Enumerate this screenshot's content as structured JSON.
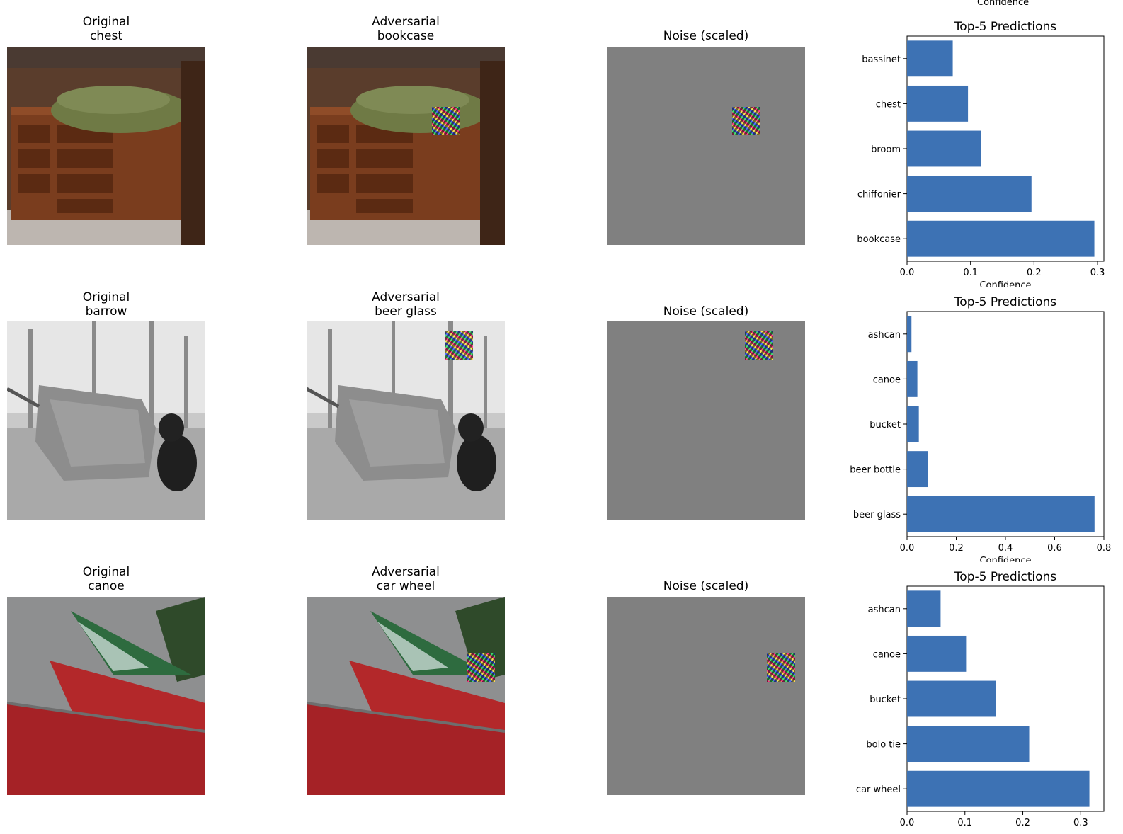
{
  "rows": [
    {
      "original_title": "Original\nchest",
      "adversarial_title": "Adversarial\nbookcase",
      "noise_title": "Noise (scaled)"
    },
    {
      "original_title": "Original\nbarrow",
      "adversarial_title": "Adversarial\nbeer glass",
      "noise_title": "Noise (scaled)"
    },
    {
      "original_title": "Original\ncanoe",
      "adversarial_title": "Adversarial\ncar wheel",
      "noise_title": "Noise (scaled)"
    }
  ],
  "colors": {
    "bar": "#3d72b4",
    "noise_bg": "#808080"
  },
  "chart_data": [
    {
      "type": "bar",
      "orientation": "horizontal",
      "title": "Top-5 Predictions",
      "xlabel": "Confidence",
      "ylabel": "",
      "xlim": [
        0,
        0.31
      ],
      "xticks": [
        "0.0",
        "0.1",
        "0.2",
        "0.3"
      ],
      "categories": [
        "bookcase",
        "chiffonier",
        "broom",
        "chest",
        "bassinet"
      ],
      "values": [
        0.295,
        0.196,
        0.117,
        0.096,
        0.072
      ]
    },
    {
      "type": "bar",
      "orientation": "horizontal",
      "title": "Top-5 Predictions",
      "xlabel": "Confidence",
      "ylabel": "",
      "xlim": [
        0,
        0.8
      ],
      "xticks": [
        "0.0",
        "0.2",
        "0.4",
        "0.6",
        "0.8"
      ],
      "categories": [
        "beer glass",
        "beer bottle",
        "bucket",
        "canoe",
        "ashcan"
      ],
      "values": [
        0.762,
        0.085,
        0.048,
        0.042,
        0.018
      ]
    },
    {
      "type": "bar",
      "orientation": "horizontal",
      "title": "Top-5 Predictions",
      "xlabel": "",
      "ylabel": "",
      "xlim": [
        0,
        0.34
      ],
      "xticks": [
        "0.0",
        "0.1",
        "0.2",
        "0.3"
      ],
      "categories": [
        "car wheel",
        "bolo tie",
        "bucket",
        "canoe",
        "ashcan"
      ],
      "values": [
        0.315,
        0.211,
        0.153,
        0.102,
        0.058
      ]
    }
  ],
  "top_clipped_label": "Confidence"
}
